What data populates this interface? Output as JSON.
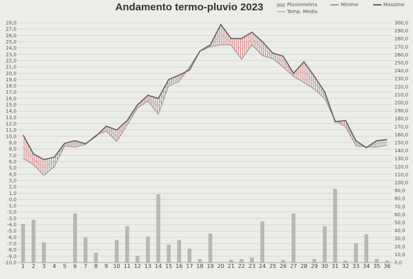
{
  "chart_data": {
    "type": "line",
    "title": "Andamento termo-pluvio 2023",
    "x": [
      1,
      2,
      3,
      4,
      5,
      6,
      7,
      8,
      9,
      10,
      11,
      12,
      13,
      14,
      15,
      16,
      17,
      18,
      19,
      20,
      21,
      22,
      23,
      24,
      25,
      26,
      27,
      28,
      29,
      30,
      31,
      32,
      33,
      34,
      35,
      36
    ],
    "x_labels": [
      "1",
      "2",
      "3",
      "4",
      "5",
      "6",
      "7",
      "8",
      "9",
      "10",
      "11",
      "12",
      "13",
      "14",
      "15",
      "16",
      "17",
      "18",
      "19",
      "20",
      "21",
      "22",
      "23",
      "24",
      "25",
      "26",
      "27",
      "28",
      "29",
      "30",
      "31",
      "32",
      "33",
      "34",
      "35",
      "36"
    ],
    "y_left_ticks": [
      "28,0",
      "27,0",
      "26,0",
      "25,0",
      "24,0",
      "23,0",
      "22,0",
      "21,0",
      "20,0",
      "19,0",
      "18,0",
      "17,0",
      "16,0",
      "15,0",
      "14,0",
      "13,0",
      "12,0",
      "11,0",
      "10,0",
      "9,0",
      "8,0",
      "7,0",
      "6,0",
      "5,0",
      "4,0",
      "3,0",
      "2,0",
      "1,0",
      "0,0",
      "-1,0",
      "-2,0",
      "-3,0",
      "-4,0",
      "-5,0",
      "-6,0",
      "-7,0",
      "-8,0",
      "-9,0",
      "-10,0"
    ],
    "y_right_ticks": [
      "300,0",
      "290,0",
      "280,0",
      "270,0",
      "260,0",
      "250,0",
      "240,0",
      "230,0",
      "220,0",
      "210,0",
      "200,0",
      "190,0",
      "180,0",
      "170,0",
      "160,0",
      "150,0",
      "140,0",
      "130,0",
      "120,0",
      "110,0",
      "100,0",
      "90,0",
      "80,0",
      "70,0",
      "60,0",
      "50,0",
      "40,0",
      "30,0",
      "20,0",
      "10,0",
      "0,0"
    ],
    "ylim_left": [
      -10,
      28
    ],
    "ylim_right": [
      0,
      300
    ],
    "grid": true,
    "legend_position": "top-right",
    "series": [
      {
        "name": "Pluviometria",
        "axis": "right",
        "kind": "bar",
        "color": "#b8b8b8",
        "values": [
          48,
          53,
          25,
          0,
          0,
          61,
          31,
          12,
          0,
          28,
          45,
          8,
          32,
          85,
          22,
          28,
          17,
          4,
          36,
          0,
          3,
          4,
          6,
          51,
          0,
          3,
          61,
          0,
          4,
          45,
          92,
          2,
          24,
          35,
          4,
          2
        ]
      },
      {
        "name": "Minime",
        "axis": "left",
        "kind": "line",
        "color": "#9a9a9a",
        "values": [
          6.5,
          5.5,
          3.8,
          5.2,
          8.5,
          8.3,
          8.7,
          10.2,
          10.8,
          9.2,
          11.8,
          14.5,
          15.6,
          13.5,
          18.0,
          18.7,
          21.0,
          23.5,
          24.2,
          24.5,
          24.5,
          22.2,
          24.5,
          22.8,
          22.3,
          21.0,
          19.5,
          18.5,
          17.5,
          16.0,
          12.5,
          11.5,
          8.5,
          8.3,
          8.3,
          8.6
        ]
      },
      {
        "name": "Massime",
        "axis": "left",
        "kind": "line",
        "color": "#606060",
        "values": [
          10.2,
          7.2,
          6.3,
          6.7,
          8.9,
          9.3,
          8.8,
          10.0,
          11.6,
          11.0,
          12.5,
          15.0,
          16.5,
          16.0,
          19.0,
          19.7,
          20.5,
          23.5,
          24.5,
          27.7,
          25.5,
          25.5,
          26.5,
          25.0,
          23.2,
          22.7,
          20.0,
          21.8,
          19.5,
          17.0,
          12.3,
          12.5,
          9.3,
          8.2,
          9.3,
          9.5
        ]
      },
      {
        "name": "Temp. Media",
        "axis": "left",
        "kind": "line",
        "color": "#c0c0c0",
        "values": [
          8.4,
          6.4,
          5.1,
          6.0,
          8.7,
          8.8,
          8.8,
          10.1,
          11.2,
          10.1,
          12.2,
          14.8,
          16.1,
          14.8,
          18.5,
          19.2,
          20.8,
          23.5,
          24.4,
          26.1,
          25.0,
          23.9,
          25.5,
          23.9,
          22.8,
          21.9,
          19.8,
          20.2,
          18.5,
          16.5,
          12.4,
          12.0,
          8.9,
          8.3,
          8.8,
          9.1
        ]
      }
    ],
    "fill_colors": {
      "warm": "#d45555",
      "cold": "#5a6fa8"
    }
  }
}
